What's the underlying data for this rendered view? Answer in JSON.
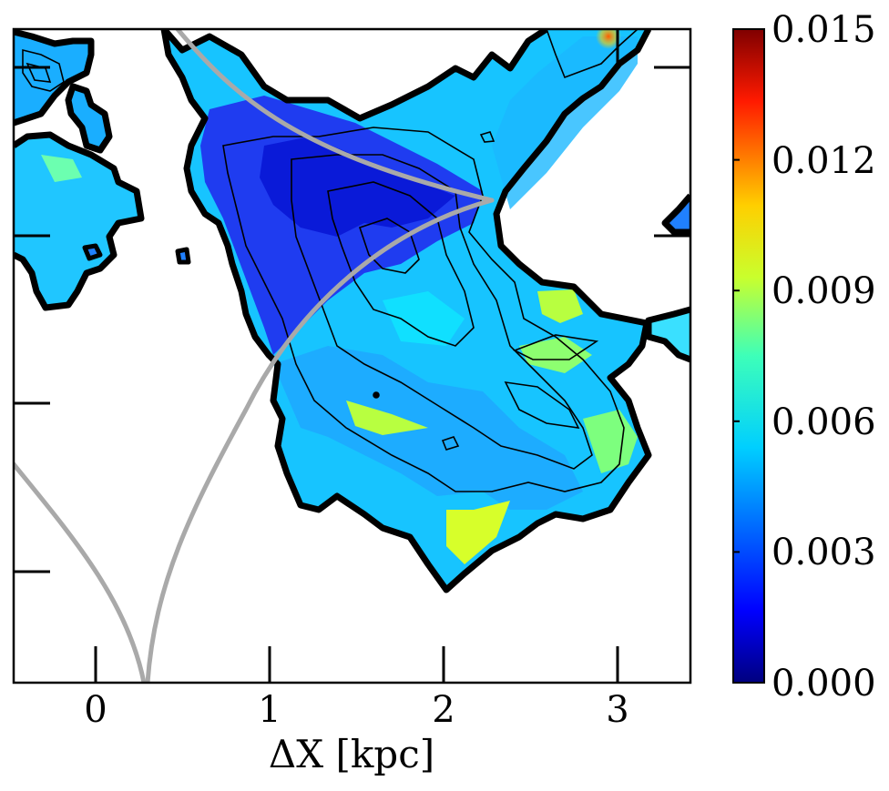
{
  "chart_data": {
    "type": "heatmap",
    "title": "",
    "xlabel": "ΔX [kpc]",
    "ylabel": "",
    "xlim": [
      -0.48,
      3.42
    ],
    "x_ticks": [
      0,
      1,
      2,
      3
    ],
    "x_tick_labels": [
      "0",
      "1",
      "2",
      "3"
    ],
    "y_ticks": [
      0,
      1,
      2,
      3
    ],
    "y_tick_labels": [],
    "colormap": "jet",
    "colorbar": {
      "range": [
        0.0,
        0.015
      ],
      "ticks": [
        0.0,
        0.003,
        0.006,
        0.009,
        0.012,
        0.015
      ],
      "tick_labels": [
        "0.000",
        "0.003",
        "0.006",
        "0.009",
        "0.012",
        "0.015"
      ]
    },
    "grid": false,
    "legend": "none",
    "overlays": [
      "region outline (thick black)",
      "density contours (thin black)",
      "caustic / critical curve (gray)"
    ],
    "colors": {
      "outline": "#000000",
      "contour": "#000000",
      "caustic": "#a9a9a9",
      "frame": "#000000"
    }
  }
}
